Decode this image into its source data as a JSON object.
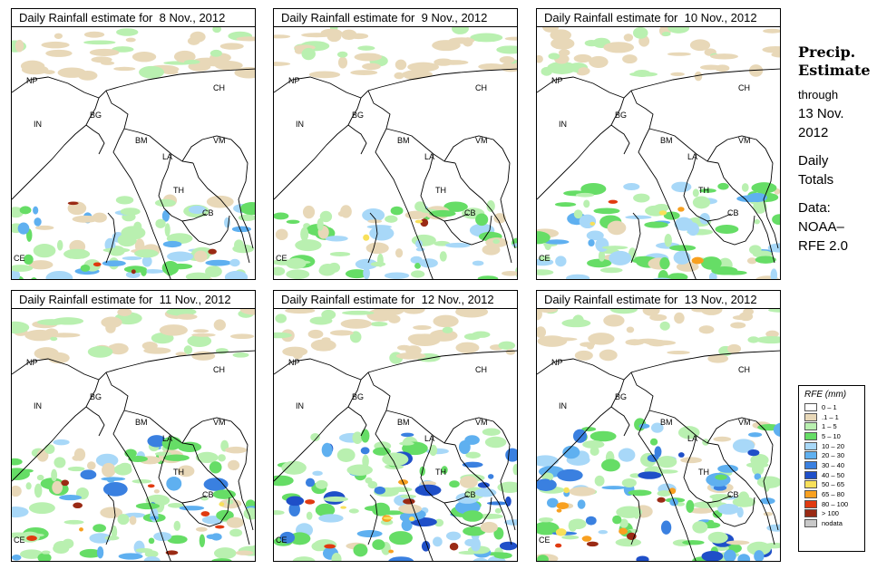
{
  "panels": [
    {
      "title": "Daily Rainfall estimate for  8 Nov., 2012",
      "intensity": 0.35
    },
    {
      "title": "Daily Rainfall estimate for  9 Nov., 2012",
      "intensity": 0.25
    },
    {
      "title": "Daily Rainfall estimate for  10 Nov., 2012",
      "intensity": 0.45
    },
    {
      "title": "Daily Rainfall estimate for  11 Nov., 2012",
      "intensity": 0.75
    },
    {
      "title": "Daily Rainfall estimate for  12 Nov., 2012",
      "intensity": 0.85
    },
    {
      "title": "Daily Rainfall estimate for  13 Nov., 2012",
      "intensity": 0.95
    }
  ],
  "country_labels": [
    "NP",
    "CH",
    "IN",
    "BG",
    "BM",
    "VM",
    "LA",
    "TH",
    "CB",
    "CE"
  ],
  "side": {
    "heading1": "Precip.",
    "heading2": "Estimate",
    "through": "through",
    "date1": "13 Nov.",
    "date2": "2012",
    "daily": "Daily",
    "totals": "Totals",
    "data1": "Data:",
    "data2": "NOAA–",
    "data3": "RFE 2.0"
  },
  "legend": {
    "title": "RFE (mm)",
    "items": [
      {
        "label": "0 – 1",
        "color": "#ffffff"
      },
      {
        "label": ".1 – 1",
        "color": "#e8d8b8"
      },
      {
        "label": "1 – 5",
        "color": "#b9f0b0"
      },
      {
        "label": "5 – 10",
        "color": "#66dd66"
      },
      {
        "label": "10 – 20",
        "color": "#a8d8f8"
      },
      {
        "label": "20 – 30",
        "color": "#5fb0f0"
      },
      {
        "label": "30 – 40",
        "color": "#3a80e0"
      },
      {
        "label": "40 – 50",
        "color": "#1f4fc8"
      },
      {
        "label": "50 – 65",
        "color": "#f8e05a"
      },
      {
        "label": "65 – 80",
        "color": "#f8a020"
      },
      {
        "label": "80 – 100",
        "color": "#e03a10"
      },
      {
        "label": "> 100",
        "color": "#9a2a14"
      },
      {
        "label": "nodata",
        "color": "#c8c8c8"
      }
    ]
  }
}
